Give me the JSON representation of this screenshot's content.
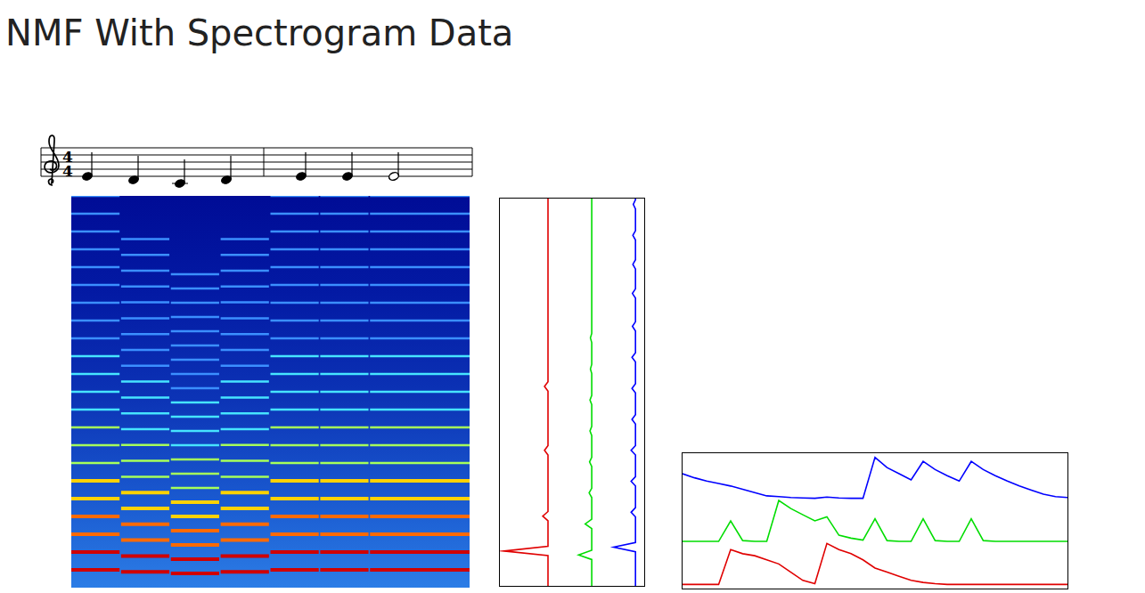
{
  "title": "NMF With Spectrogram Data",
  "score": {
    "time_signature": [
      4,
      4
    ],
    "notes": [
      {
        "step": 0,
        "beats": 1
      },
      {
        "step": -1,
        "beats": 1
      },
      {
        "step": -2,
        "beats": 1
      },
      {
        "step": -1,
        "beats": 1
      },
      {
        "step": 0,
        "beats": 1
      },
      {
        "step": 0,
        "beats": 1
      },
      {
        "step": 0,
        "beats": 2
      }
    ]
  },
  "chart_data": [
    {
      "type": "spectrogram",
      "tick_labels": false,
      "xlim": [
        0,
        8
      ],
      "ylim": [
        0,
        22
      ],
      "harmonics": 22,
      "notes": [
        {
          "start": 0,
          "end": 0.97,
          "f0": 1.0
        },
        {
          "start": 1,
          "end": 1.97,
          "f0": 0.89
        },
        {
          "start": 2,
          "end": 2.97,
          "f0": 0.8
        },
        {
          "start": 3,
          "end": 3.97,
          "f0": 0.89
        },
        {
          "start": 4,
          "end": 4.97,
          "f0": 1.0
        },
        {
          "start": 5,
          "end": 5.97,
          "f0": 1.0
        },
        {
          "start": 6,
          "end": 8,
          "f0": 1.0
        }
      ]
    },
    {
      "type": "line",
      "orientation": "horizontal",
      "tick_labels": false,
      "ylim": [
        0,
        10
      ],
      "series": [
        {
          "color": "#e00000",
          "frequencies": [
            0.9,
            1.8,
            3.5,
            5.15
          ],
          "values": [
            1.0,
            0.12,
            0.08,
            0.08
          ]
        },
        {
          "color": "#00dd00",
          "frequencies": [
            0.8,
            1.6,
            2.4,
            3.2,
            4.0,
            4.8,
            5.6,
            6.4
          ],
          "values": [
            0.3,
            0.15,
            0.06,
            0.05,
            0.04,
            0.04,
            0.03,
            0.03
          ]
        },
        {
          "color": "#0000ff",
          "frequencies": [
            1.0,
            1.9,
            2.7,
            3.5,
            4.3,
            5.1,
            5.9,
            6.7,
            7.55,
            8.3,
            9.05,
            9.85
          ],
          "values": [
            0.5,
            0.1,
            0.1,
            0.1,
            0.08,
            0.08,
            0.08,
            0.07,
            0.07,
            0.06,
            0.06,
            0.05
          ]
        }
      ]
    },
    {
      "type": "line",
      "tick_labels": false,
      "xlim": [
        0,
        8
      ],
      "x": [
        0,
        0.25,
        0.5,
        0.75,
        1,
        1.25,
        1.5,
        1.75,
        2,
        2.25,
        2.5,
        2.75,
        3,
        3.25,
        3.5,
        3.75,
        4,
        4.25,
        4.5,
        4.75,
        5,
        5.25,
        5.5,
        5.75,
        6,
        6.25,
        6.5,
        6.75,
        7,
        7.25,
        7.5,
        7.75,
        8
      ],
      "series": [
        {
          "color": "#0000ff",
          "values": [
            0.6,
            0.5,
            0.42,
            0.36,
            0.3,
            0.22,
            0.14,
            0.06,
            0.04,
            0.02,
            0.01,
            0,
            0.03,
            0.01,
            0,
            0,
            1.0,
            0.75,
            0.6,
            0.45,
            0.9,
            0.7,
            0.55,
            0.42,
            0.9,
            0.7,
            0.55,
            0.42,
            0.3,
            0.2,
            0.1,
            0.04,
            0.02
          ]
        },
        {
          "color": "#00dd00",
          "values": [
            0,
            0,
            0,
            0,
            0.5,
            0.02,
            0,
            0,
            1.0,
            0.8,
            0.65,
            0.5,
            0.6,
            0.15,
            0.08,
            0.03,
            0.55,
            0.02,
            0,
            0,
            0.55,
            0.02,
            0,
            0,
            0.55,
            0.02,
            0,
            0,
            0,
            0,
            0,
            0,
            0
          ]
        },
        {
          "color": "#e00000",
          "values": [
            0,
            0,
            0,
            0,
            0.85,
            0.75,
            0.7,
            0.6,
            0.5,
            0.3,
            0.1,
            0.02,
            1.0,
            0.85,
            0.75,
            0.6,
            0.4,
            0.3,
            0.2,
            0.1,
            0.05,
            0.02,
            0,
            0,
            0,
            0,
            0,
            0,
            0,
            0,
            0,
            0,
            0
          ]
        }
      ]
    }
  ]
}
